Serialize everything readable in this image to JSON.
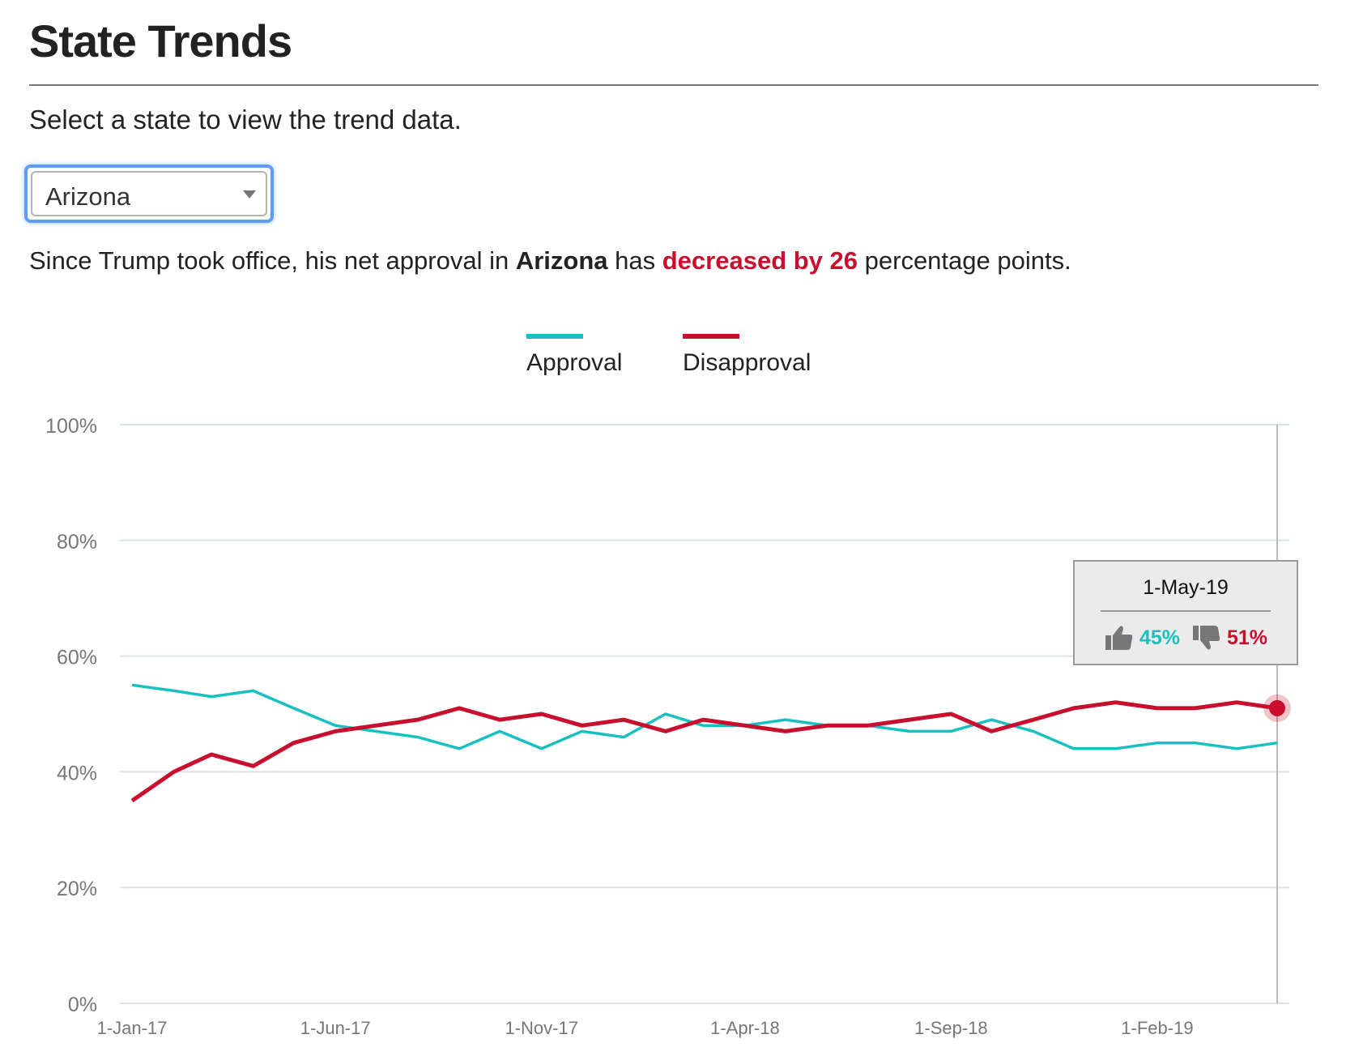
{
  "page": {
    "title": "State Trends",
    "instructions": "Select a state to view the trend data."
  },
  "state_select": {
    "selected": "Arizona"
  },
  "summary": {
    "prefix": "Since Trump took office, his net approval in",
    "state": "Arizona",
    "middle": "has",
    "change": "decreased by 26",
    "suffix": "percentage points."
  },
  "colors": {
    "approval": "#19c0c0",
    "disapproval": "#c8102e",
    "grid": "#dde3ea",
    "axis_text": "#777777"
  },
  "tooltip": {
    "date": "1-May-19",
    "approval": "45%",
    "disapproval": "51%",
    "approval_icon": "thumbs-up-icon",
    "disapproval_icon": "thumbs-down-icon"
  },
  "chart_data": {
    "type": "line",
    "title": "",
    "xlabel": "",
    "ylabel": "",
    "ylim": [
      0,
      100
    ],
    "y_ticks": [
      "0%",
      "20%",
      "40%",
      "60%",
      "80%",
      "100%"
    ],
    "y_tick_values": [
      0,
      20,
      40,
      60,
      80,
      100
    ],
    "x_ticks": [
      "1-Jan-17",
      "1-Jun-17",
      "1-Nov-17",
      "1-Apr-18",
      "1-Sep-18",
      "1-Feb-19"
    ],
    "x": [
      "2017-01-01",
      "2017-02-01",
      "2017-03-01",
      "2017-04-01",
      "2017-05-01",
      "2017-06-01",
      "2017-07-01",
      "2017-08-01",
      "2017-09-01",
      "2017-10-01",
      "2017-11-01",
      "2017-12-01",
      "2018-01-01",
      "2018-02-01",
      "2018-03-01",
      "2018-04-01",
      "2018-05-01",
      "2018-06-01",
      "2018-07-01",
      "2018-08-01",
      "2018-09-01",
      "2018-10-01",
      "2018-11-01",
      "2018-12-01",
      "2019-01-01",
      "2019-02-01",
      "2019-03-01",
      "2019-04-01",
      "2019-05-01"
    ],
    "series": [
      {
        "name": "Approval",
        "values": [
          55,
          54,
          53,
          54,
          51,
          48,
          47,
          46,
          44,
          47,
          44,
          47,
          46,
          50,
          48,
          48,
          49,
          48,
          48,
          47,
          47,
          49,
          47,
          44,
          44,
          45,
          45,
          44,
          45
        ]
      },
      {
        "name": "Disapproval",
        "values": [
          35,
          40,
          43,
          41,
          45,
          47,
          48,
          49,
          51,
          49,
          50,
          48,
          49,
          47,
          49,
          48,
          47,
          48,
          48,
          49,
          50,
          47,
          49,
          51,
          52,
          51,
          51,
          52,
          51
        ]
      }
    ],
    "highlighted_index": 28,
    "legend_position": "top-center",
    "grid": true
  }
}
